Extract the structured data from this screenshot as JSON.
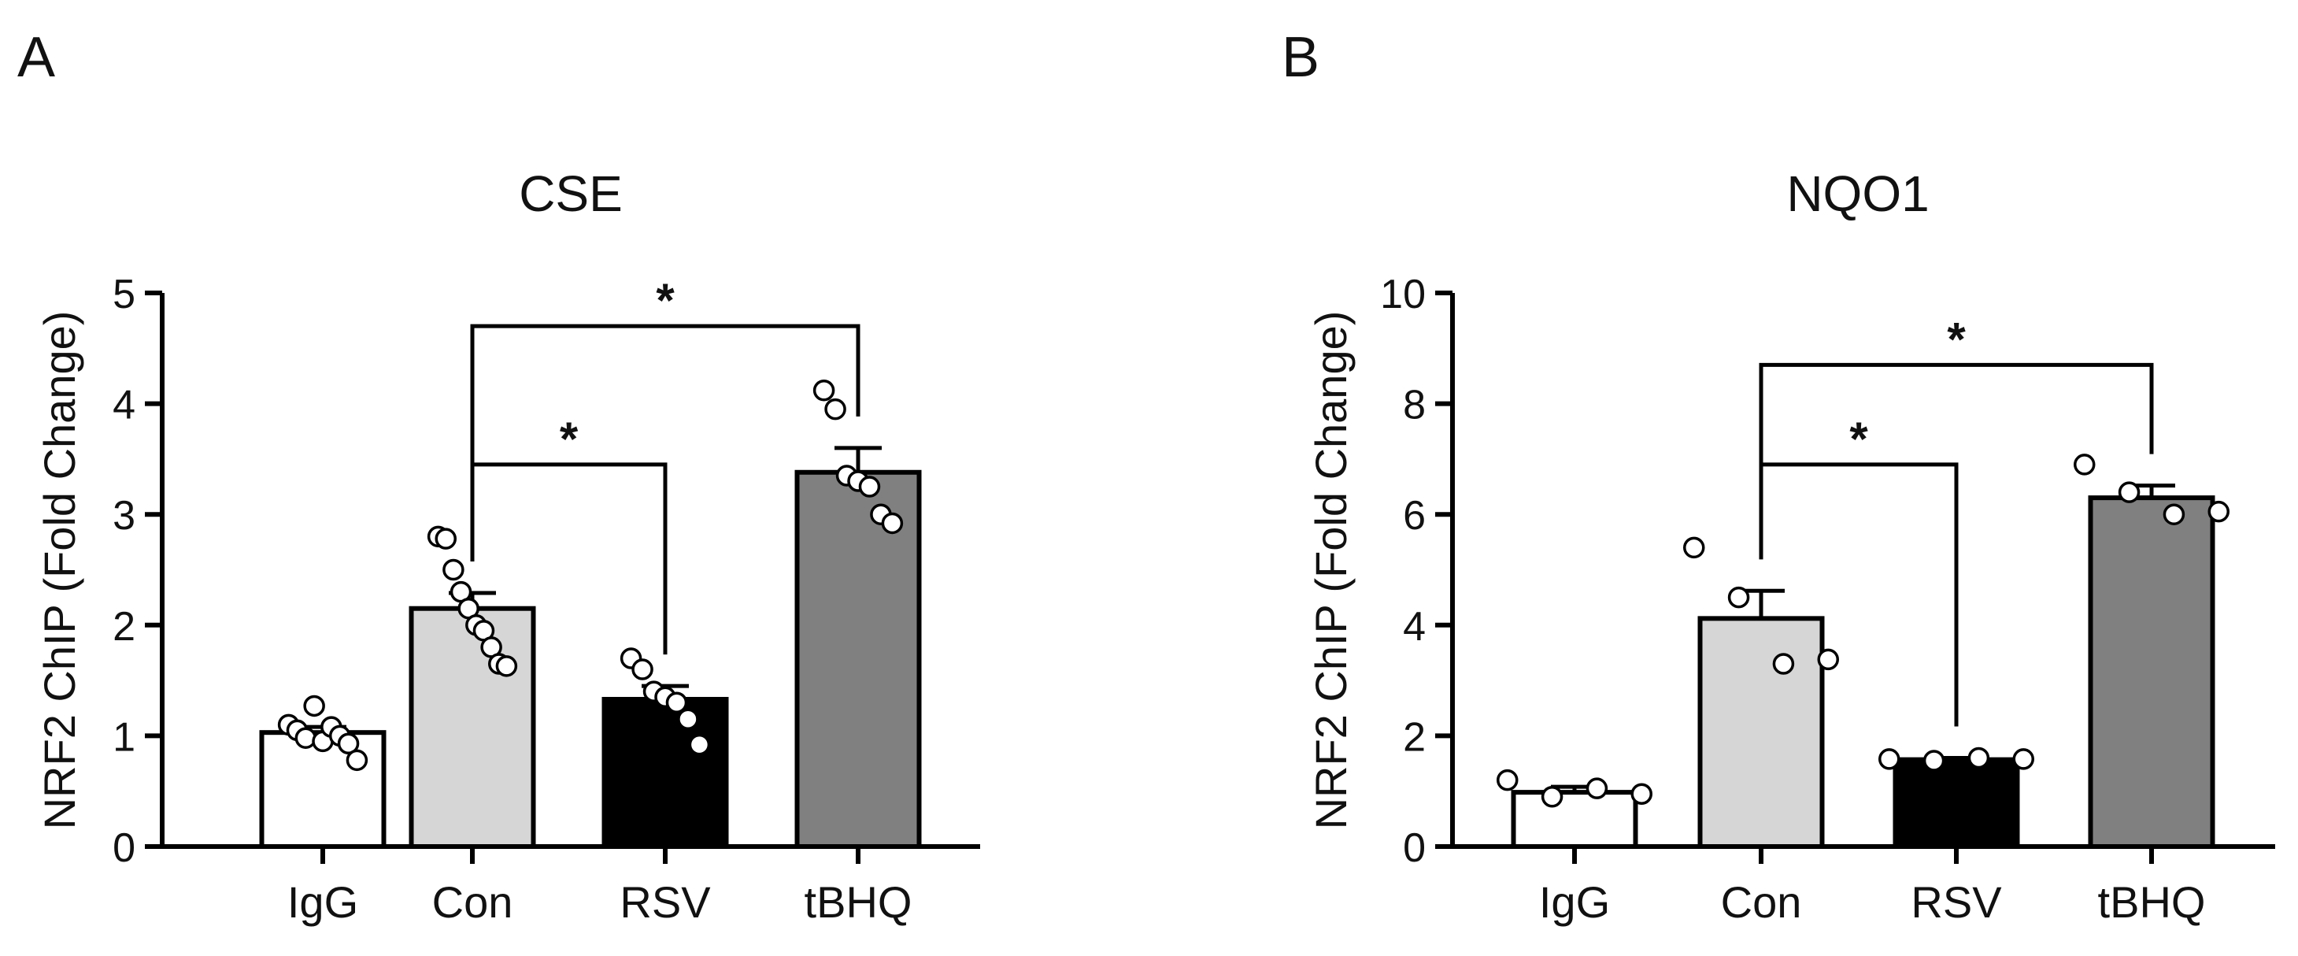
{
  "panel_letters": [
    "A",
    "B"
  ],
  "chart_data": [
    {
      "type": "bar",
      "panel": "A",
      "title": "CSE",
      "ylabel": "NRF2 ChIP (Fold Change)",
      "xlabel": "",
      "ylim": [
        0,
        5
      ],
      "yticks": [
        0,
        1,
        2,
        3,
        4,
        5
      ],
      "categories": [
        "IgG",
        "Con",
        "RSV",
        "tBHQ"
      ],
      "bar_colors": [
        "#ffffff",
        "#d6d6d6",
        "#000000",
        "#808080"
      ],
      "values": [
        1.03,
        2.15,
        1.33,
        3.38
      ],
      "sem": [
        0.05,
        0.14,
        0.12,
        0.22
      ],
      "points": [
        [
          1.1,
          1.05,
          0.98,
          1.27,
          0.95,
          1.08,
          1.0,
          0.93,
          0.78
        ],
        [
          2.8,
          2.78,
          2.5,
          2.3,
          2.15,
          2.0,
          1.95,
          1.8,
          1.65,
          1.63
        ],
        [
          1.7,
          1.6,
          1.4,
          1.35,
          1.3,
          1.15,
          0.92
        ],
        [
          4.12,
          3.95,
          3.35,
          3.3,
          3.25,
          3.0,
          2.92
        ]
      ],
      "significance": [
        {
          "from": "Con",
          "to": "RSV",
          "label": "*",
          "y": 3.45
        },
        {
          "from": "Con",
          "to": "tBHQ",
          "label": "*",
          "y": 4.7
        }
      ]
    },
    {
      "type": "bar",
      "panel": "B",
      "title": "NQO1",
      "ylabel": "NRF2 ChIP (Fold Change)",
      "xlabel": "",
      "ylim": [
        0,
        10
      ],
      "yticks": [
        0,
        2,
        4,
        6,
        8,
        10
      ],
      "categories": [
        "IgG",
        "Con",
        "RSV",
        "tBHQ"
      ],
      "bar_colors": [
        "#ffffff",
        "#d6d6d6",
        "#000000",
        "#808080"
      ],
      "values": [
        0.98,
        4.12,
        1.57,
        6.3
      ],
      "sem": [
        0.1,
        0.5,
        0.03,
        0.22
      ],
      "points": [
        [
          1.2,
          0.9,
          1.05,
          0.95
        ],
        [
          5.4,
          4.5,
          3.3,
          3.38
        ],
        [
          1.58,
          1.55,
          1.6,
          1.58
        ],
        [
          6.9,
          6.4,
          6.0,
          6.05
        ]
      ],
      "significance": [
        {
          "from": "Con",
          "to": "RSV",
          "label": "*",
          "y": 6.9
        },
        {
          "from": "Con",
          "to": "tBHQ",
          "label": "*",
          "y": 8.7
        }
      ]
    }
  ]
}
